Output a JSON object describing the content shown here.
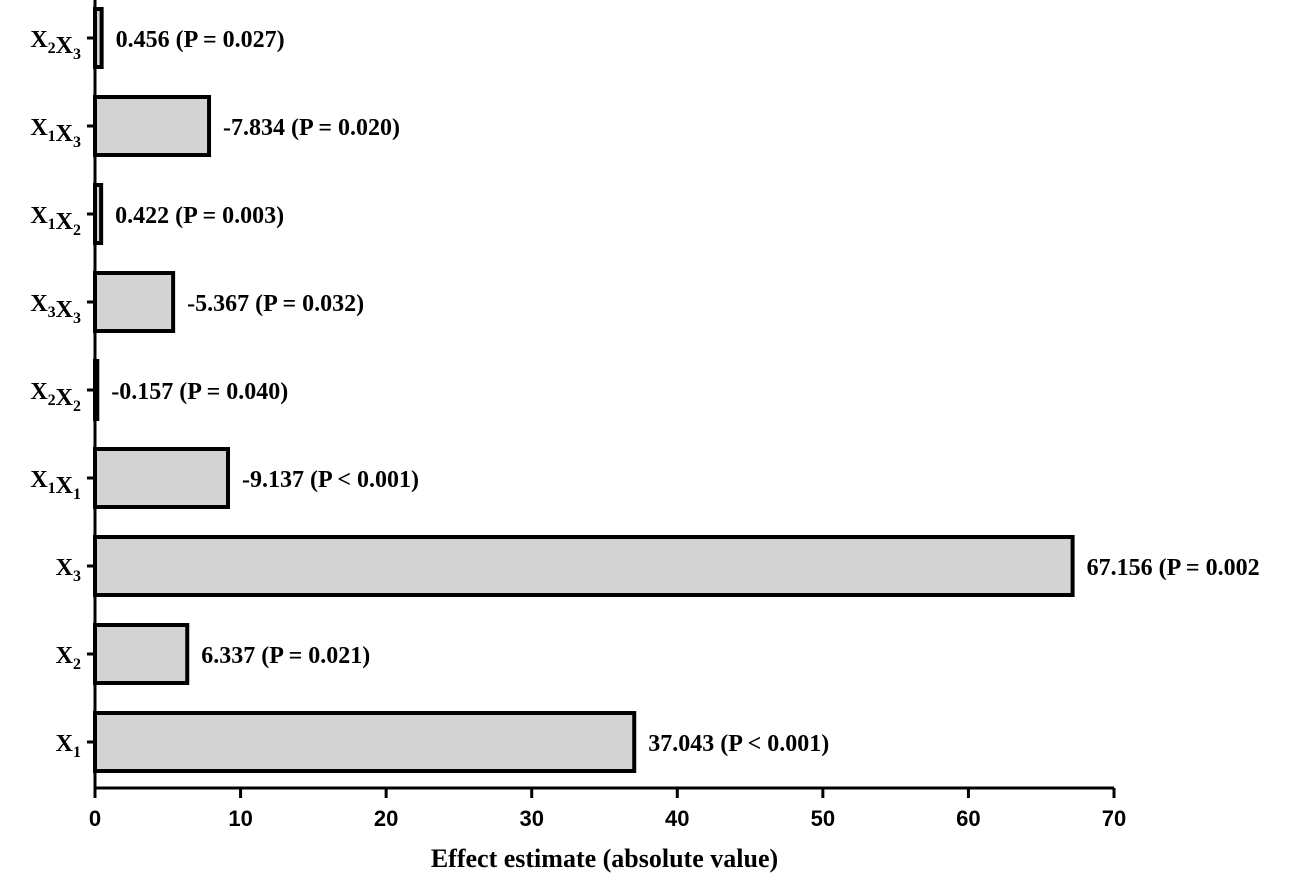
{
  "chart_data": {
    "type": "bar",
    "orientation": "horizontal",
    "categories": [
      {
        "base": "X",
        "parts": [
          [
            "X",
            "1"
          ]
        ]
      },
      {
        "base": "X",
        "parts": [
          [
            "X",
            "2"
          ]
        ]
      },
      {
        "base": "X",
        "parts": [
          [
            "X",
            "3"
          ]
        ]
      },
      {
        "base": "X",
        "parts": [
          [
            "X",
            "1"
          ],
          [
            "X",
            "1"
          ]
        ]
      },
      {
        "base": "X",
        "parts": [
          [
            "X",
            "2"
          ],
          [
            "X",
            "2"
          ]
        ]
      },
      {
        "base": "X",
        "parts": [
          [
            "X",
            "3"
          ],
          [
            "X",
            "3"
          ]
        ]
      },
      {
        "base": "X",
        "parts": [
          [
            "X",
            "1"
          ],
          [
            "X",
            "2"
          ]
        ]
      },
      {
        "base": "X",
        "parts": [
          [
            "X",
            "1"
          ],
          [
            "X",
            "3"
          ]
        ]
      },
      {
        "base": "X",
        "parts": [
          [
            "X",
            "2"
          ],
          [
            "X",
            "3"
          ]
        ]
      }
    ],
    "category_names": [
      "X1",
      "X2",
      "X3",
      "X1X1",
      "X2X2",
      "X3X3",
      "X1X2",
      "X1X3",
      "X2X3"
    ],
    "values": [
      37.043,
      6.337,
      67.156,
      9.137,
      0.157,
      5.367,
      0.422,
      7.834,
      0.456
    ],
    "data_labels": [
      "37.043 (P < 0.001)",
      "6.337 (P = 0.021)",
      "67.156 (P = 0.002",
      "-9.137 (P < 0.001)",
      "-0.157 (P = 0.040)",
      "-5.367 (P = 0.032)",
      "0.422 (P = 0.003)",
      "-7.834 (P = 0.020)",
      "0.456 (P = 0.027)"
    ],
    "xlabel": "Effect estimate (absolute value)",
    "xlim": [
      0,
      70
    ],
    "xticks": [
      0,
      10,
      20,
      30,
      40,
      50,
      60,
      70
    ],
    "grid": false,
    "colors": {
      "bar_fill": "#d3d3d3",
      "bar_stroke": "#000000"
    }
  }
}
